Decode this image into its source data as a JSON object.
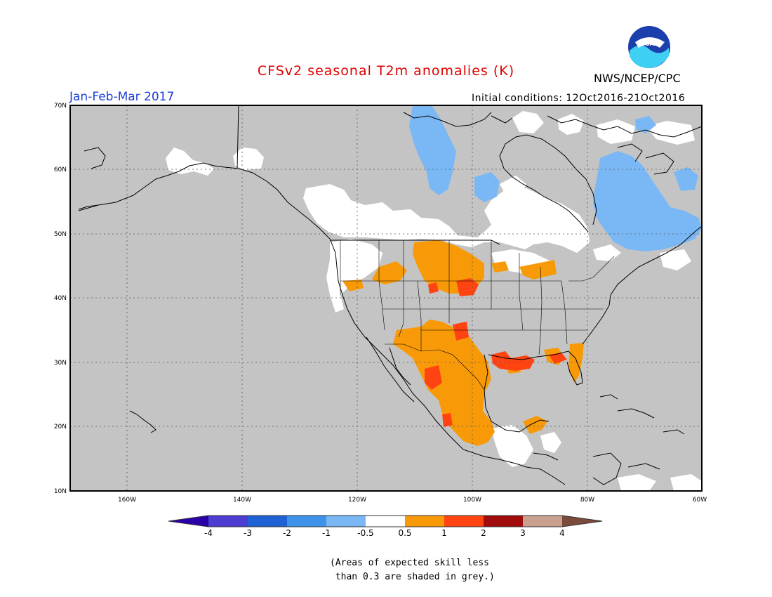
{
  "header": {
    "title": "CFSv2 seasonal T2m anomalies (K)",
    "org": "NWS/NCEP/CPC",
    "logo_text": "NOAA",
    "season": "Jan-Feb-Mar 2017",
    "initial_conditions": "Initial conditions: 12Oct2016-21Oct2016"
  },
  "colors": {
    "title": "#e00000",
    "season": "#1a3fd6",
    "skill_grey": "#c4c4c4",
    "land_line": "#000000"
  },
  "map": {
    "lat_ticks": [
      "70N",
      "60N",
      "50N",
      "40N",
      "30N",
      "20N",
      "10N"
    ],
    "lon_ticks": [
      "160W",
      "140W",
      "120W",
      "100W",
      "80W",
      "60W"
    ]
  },
  "colorbar": {
    "colors": [
      "#2a00a8",
      "#4d3cd1",
      "#1f62d6",
      "#3f92ea",
      "#7ab8f5",
      "#ffffff",
      "#f89a07",
      "#ff4412",
      "#a00c0c",
      "#c9a090",
      "#7a4a3a"
    ],
    "labels": [
      "-4",
      "-3",
      "-2",
      "-1",
      "-0.5",
      "0.5",
      "1",
      "2",
      "3",
      "4"
    ]
  },
  "note": {
    "line1": "(Areas of expected skill less",
    "line2": " than 0.3 are shaded in grey.)"
  }
}
